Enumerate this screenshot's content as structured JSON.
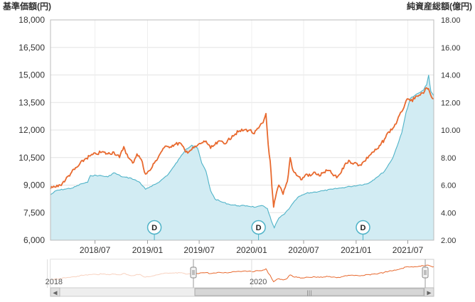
{
  "chart_data": {
    "type": "line",
    "left_axis_title": "基準価額(円)",
    "right_axis_title": "純資産総額(億円)",
    "y_left": {
      "min": 6000,
      "max": 18000,
      "ticks": [
        "6,000",
        "7,500",
        "9,000",
        "10,500",
        "12,000",
        "13,500",
        "15,000",
        "16,500",
        "18,000"
      ],
      "tick_values": [
        6000,
        7500,
        9000,
        10500,
        12000,
        13500,
        15000,
        16500,
        18000
      ]
    },
    "y_right": {
      "min": 2,
      "max": 18,
      "ticks": [
        "2.00",
        "4.00",
        "6.00",
        "8.00",
        "10.00",
        "12.00",
        "14.00",
        "16.00",
        "18.00"
      ],
      "tick_values": [
        2,
        4,
        6,
        8,
        10,
        12,
        14,
        16,
        18
      ]
    },
    "x_range": [
      "2018-01-26",
      "2021-09-30"
    ],
    "x_ticks": [
      {
        "label": "2018/07",
        "date": "2018-07-01"
      },
      {
        "label": "2019/01",
        "date": "2019-01-01"
      },
      {
        "label": "2019/07",
        "date": "2019-07-01"
      },
      {
        "label": "2020/01",
        "date": "2020-01-01"
      },
      {
        "label": "2020/07",
        "date": "2020-07-01"
      },
      {
        "label": "2021/01",
        "date": "2021-01-01"
      },
      {
        "label": "2021/07",
        "date": "2021-07-01"
      }
    ],
    "grid": true,
    "series": [
      {
        "axis": "left",
        "color": "#e8692e",
        "points": [
          [
            "2018-01-26",
            8800
          ],
          [
            "2018-02-10",
            8900
          ],
          [
            "2018-03-01",
            9000
          ],
          [
            "2018-03-20",
            9300
          ],
          [
            "2018-04-10",
            9700
          ],
          [
            "2018-05-01",
            10000
          ],
          [
            "2018-05-25",
            10400
          ],
          [
            "2018-06-15",
            10600
          ],
          [
            "2018-07-05",
            10700
          ],
          [
            "2018-07-25",
            10800
          ],
          [
            "2018-08-15",
            10700
          ],
          [
            "2018-09-05",
            10800
          ],
          [
            "2018-09-25",
            10500
          ],
          [
            "2018-10-10",
            11100
          ],
          [
            "2018-10-25",
            10500
          ],
          [
            "2018-11-10",
            10200
          ],
          [
            "2018-11-25",
            10700
          ],
          [
            "2018-12-10",
            10400
          ],
          [
            "2018-12-25",
            9600
          ],
          [
            "2019-01-10",
            9800
          ],
          [
            "2019-01-25",
            10200
          ],
          [
            "2019-02-10",
            10600
          ],
          [
            "2019-02-25",
            11000
          ],
          [
            "2019-03-15",
            11100
          ],
          [
            "2019-04-05",
            11200
          ],
          [
            "2019-04-25",
            11300
          ],
          [
            "2019-05-15",
            10800
          ],
          [
            "2019-06-01",
            10900
          ],
          [
            "2019-06-20",
            11100
          ],
          [
            "2019-07-10",
            11300
          ],
          [
            "2019-07-25",
            11400
          ],
          [
            "2019-08-10",
            11000
          ],
          [
            "2019-08-25",
            11200
          ],
          [
            "2019-09-15",
            11400
          ],
          [
            "2019-10-05",
            11300
          ],
          [
            "2019-10-25",
            11700
          ],
          [
            "2019-11-15",
            11900
          ],
          [
            "2019-12-05",
            12000
          ],
          [
            "2019-12-25",
            12000
          ],
          [
            "2020-01-10",
            11800
          ],
          [
            "2020-01-25",
            12100
          ],
          [
            "2020-02-10",
            12400
          ],
          [
            "2020-02-20",
            12900
          ],
          [
            "2020-02-28",
            11200
          ],
          [
            "2020-03-06",
            10300
          ],
          [
            "2020-03-12",
            8900
          ],
          [
            "2020-03-18",
            7800
          ],
          [
            "2020-03-24",
            8300
          ],
          [
            "2020-04-05",
            9000
          ],
          [
            "2020-04-20",
            8500
          ],
          [
            "2020-05-05",
            9200
          ],
          [
            "2020-05-15",
            10500
          ],
          [
            "2020-05-25",
            9800
          ],
          [
            "2020-06-10",
            9500
          ],
          [
            "2020-06-25",
            9300
          ],
          [
            "2020-07-10",
            9600
          ],
          [
            "2020-07-25",
            9500
          ],
          [
            "2020-08-10",
            9700
          ],
          [
            "2020-08-25",
            9500
          ],
          [
            "2020-09-10",
            9700
          ],
          [
            "2020-09-25",
            9800
          ],
          [
            "2020-10-10",
            9600
          ],
          [
            "2020-10-25",
            9400
          ],
          [
            "2020-11-10",
            9700
          ],
          [
            "2020-11-25",
            10200
          ],
          [
            "2020-12-10",
            10300
          ],
          [
            "2020-12-25",
            10200
          ],
          [
            "2021-01-15",
            10100
          ],
          [
            "2021-01-30",
            10300
          ],
          [
            "2021-02-15",
            10600
          ],
          [
            "2021-03-01",
            10800
          ],
          [
            "2021-03-20",
            11000
          ],
          [
            "2021-04-10",
            11500
          ],
          [
            "2021-04-25",
            11900
          ],
          [
            "2021-05-10",
            12100
          ],
          [
            "2021-05-25",
            12500
          ],
          [
            "2021-06-10",
            13000
          ],
          [
            "2021-06-25",
            13600
          ],
          [
            "2021-07-10",
            13600
          ],
          [
            "2021-07-25",
            13700
          ],
          [
            "2021-08-10",
            13900
          ],
          [
            "2021-08-25",
            14000
          ],
          [
            "2021-09-05",
            14300
          ],
          [
            "2021-09-15",
            14100
          ],
          [
            "2021-09-22",
            13800
          ],
          [
            "2021-09-30",
            13700
          ]
        ]
      },
      {
        "axis": "right",
        "color": "#4fb3c8",
        "fill": "#d2ecf3",
        "points": [
          [
            "2018-01-26",
            5.3
          ],
          [
            "2018-02-15",
            5.6
          ],
          [
            "2018-03-15",
            5.7
          ],
          [
            "2018-04-15",
            5.8
          ],
          [
            "2018-05-15",
            6.1
          ],
          [
            "2018-06-05",
            6.2
          ],
          [
            "2018-06-15",
            6.7
          ],
          [
            "2018-07-15",
            6.7
          ],
          [
            "2018-08-15",
            6.6
          ],
          [
            "2018-09-05",
            6.9
          ],
          [
            "2018-10-05",
            6.6
          ],
          [
            "2018-11-05",
            6.5
          ],
          [
            "2018-12-05",
            6.2
          ],
          [
            "2018-12-25",
            5.7
          ],
          [
            "2019-01-15",
            5.9
          ],
          [
            "2019-02-15",
            6.3
          ],
          [
            "2019-03-15",
            6.8
          ],
          [
            "2019-04-05",
            7.4
          ],
          [
            "2019-04-25",
            8.0
          ],
          [
            "2019-05-15",
            8.6
          ],
          [
            "2019-06-05",
            8.9
          ],
          [
            "2019-06-25",
            8.7
          ],
          [
            "2019-07-10",
            7.6
          ],
          [
            "2019-07-25",
            7.0
          ],
          [
            "2019-08-10",
            5.6
          ],
          [
            "2019-08-25",
            5.0
          ],
          [
            "2019-09-15",
            4.8
          ],
          [
            "2019-10-15",
            4.6
          ],
          [
            "2019-11-15",
            4.5
          ],
          [
            "2019-12-15",
            4.5
          ],
          [
            "2020-01-15",
            4.4
          ],
          [
            "2020-02-10",
            4.5
          ],
          [
            "2020-02-25",
            4.3
          ],
          [
            "2020-03-10",
            3.4
          ],
          [
            "2020-03-20",
            2.9
          ],
          [
            "2020-04-05",
            3.6
          ],
          [
            "2020-04-25",
            3.9
          ],
          [
            "2020-05-15",
            4.4
          ],
          [
            "2020-06-10",
            5.1
          ],
          [
            "2020-07-10",
            5.4
          ],
          [
            "2020-08-10",
            5.5
          ],
          [
            "2020-09-10",
            5.6
          ],
          [
            "2020-10-10",
            5.7
          ],
          [
            "2020-11-10",
            5.8
          ],
          [
            "2020-12-10",
            5.9
          ],
          [
            "2021-01-10",
            6.0
          ],
          [
            "2021-02-10",
            6.1
          ],
          [
            "2021-03-10",
            6.5
          ],
          [
            "2021-04-10",
            7.0
          ],
          [
            "2021-05-10",
            8.0
          ],
          [
            "2021-06-10",
            9.8
          ],
          [
            "2021-06-25",
            11.3
          ],
          [
            "2021-07-10",
            12.3
          ],
          [
            "2021-07-25",
            12.5
          ],
          [
            "2021-08-10",
            12.7
          ],
          [
            "2021-08-25",
            12.9
          ],
          [
            "2021-09-05",
            13.3
          ],
          [
            "2021-09-12",
            14.0
          ],
          [
            "2021-09-20",
            12.8
          ],
          [
            "2021-09-30",
            12.5
          ]
        ]
      }
    ],
    "dividend_markers": [
      {
        "label": "D",
        "date": "2019-01-25"
      },
      {
        "label": "D",
        "date": "2020-01-25"
      },
      {
        "label": "D",
        "date": "2021-01-25"
      }
    ]
  },
  "navigator": {
    "labels": [
      {
        "text": "2018",
        "date": "2018-01-15"
      },
      {
        "text": "2020",
        "date": "2020-01-01"
      }
    ],
    "scroll_grip": "|||",
    "left_arrow": "◀",
    "right_arrow": "▶"
  }
}
